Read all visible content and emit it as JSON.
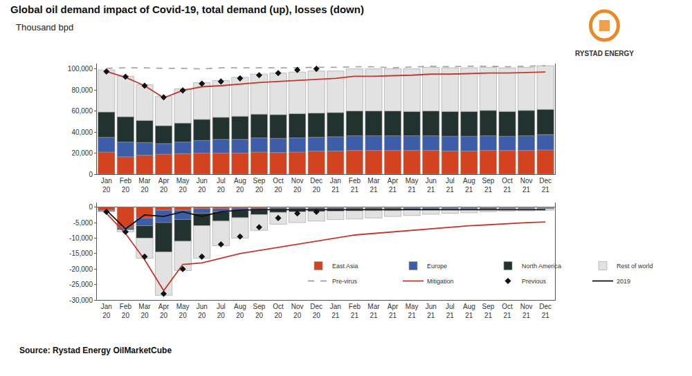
{
  "source": "Source: Rystad Energy OilMarketCube",
  "logo": "RYSTAD ENERGY",
  "chart_data": [
    {
      "type": "bar",
      "title": "Global oil demand impact of Covid-19, total demand (up), losses (down)",
      "subtitle": "Thousand bpd",
      "stacked": true,
      "grid": false,
      "categories": [
        "Jan 20",
        "Feb 20",
        "Mar 20",
        "Apr 20",
        "May 20",
        "Jun 20",
        "Jul 20",
        "Aug 20",
        "Sep 20",
        "Oct 20",
        "Nov 20",
        "Dec 20",
        "Jan 21",
        "Feb 21",
        "Mar 21",
        "Apr 21",
        "May 21",
        "Jun 21",
        "Jul 21",
        "Aug 21",
        "Sep 21",
        "Oct 21",
        "Nov 21",
        "Dec 21"
      ],
      "ylim": [
        0,
        105000
      ],
      "yticks": [
        0,
        {
          "value": 20000,
          "label": "20,000"
        },
        {
          "value": 40000,
          "label": "40,000"
        },
        {
          "value": 60000,
          "label": "60,000"
        },
        {
          "value": 80000,
          "label": "80,000"
        },
        {
          "value": 100000,
          "label": "100,000"
        }
      ],
      "series": [
        {
          "name": "East Asia",
          "type": "bar",
          "color": "#d4431f",
          "values": [
            21000,
            16500,
            18000,
            19000,
            19500,
            20000,
            20000,
            20000,
            21000,
            20500,
            21000,
            22000,
            22000,
            22500,
            22500,
            22500,
            22500,
            22500,
            22000,
            22000,
            22500,
            22500,
            22500,
            23000
          ]
        },
        {
          "name": "Europe",
          "type": "bar",
          "color": "#3d5da8",
          "values": [
            14000,
            14000,
            12000,
            10000,
            11000,
            12000,
            13000,
            13000,
            13500,
            13500,
            13500,
            13000,
            13500,
            14000,
            14000,
            14000,
            14000,
            14000,
            14000,
            14000,
            14000,
            13500,
            14000,
            14500
          ]
        },
        {
          "name": "North America",
          "type": "bar",
          "color": "#22332f",
          "values": [
            24000,
            24000,
            21000,
            17000,
            18000,
            20000,
            21000,
            22000,
            22500,
            22500,
            23000,
            23000,
            23000,
            23500,
            23500,
            23500,
            23000,
            23500,
            23500,
            23500,
            24000,
            23500,
            24000,
            24000
          ]
        },
        {
          "name": "Rest of world",
          "type": "bar",
          "color": "#e2e2e2",
          "values": [
            40000,
            38500,
            34000,
            28000,
            32500,
            35000,
            35000,
            37000,
            38000,
            39500,
            39500,
            40000,
            39500,
            40000,
            40000,
            40000,
            40500,
            41500,
            41500,
            41500,
            41000,
            41500,
            41000,
            41500
          ]
        },
        {
          "name": "Pre-virus",
          "type": "line",
          "line_style": "dashed",
          "color": "#a6a6a6",
          "values": [
            100500,
            101000,
            101000,
            100500,
            100500,
            100000,
            101000,
            101000,
            101000,
            101000,
            101000,
            101500,
            101500,
            102000,
            102000,
            101000,
            101500,
            102500,
            102000,
            102500,
            102500,
            102000,
            102500,
            103000
          ]
        },
        {
          "name": "Mitigation",
          "type": "line",
          "line_style": "solid",
          "color": "#c0392b",
          "values": [
            97500,
            92000,
            84000,
            72500,
            79500,
            83000,
            84000,
            85500,
            87000,
            88000,
            89000,
            90000,
            91000,
            93000,
            93000,
            93500,
            94000,
            95000,
            95000,
            95500,
            96000,
            96000,
            96500,
            97000
          ]
        },
        {
          "name": "Previous",
          "type": "scatter",
          "marker": "diamond",
          "color": "#111111",
          "values": [
            97500,
            92500,
            84000,
            73000,
            79500,
            86000,
            88000,
            91000,
            94000,
            96000,
            99000,
            100000,
            null,
            null,
            null,
            null,
            null,
            null,
            null,
            null,
            null,
            null,
            null,
            null
          ]
        }
      ]
    },
    {
      "type": "bar",
      "stacked": true,
      "grid": false,
      "legend": "bottom right",
      "categories": [
        "Jan 20",
        "Feb 20",
        "Mar 20",
        "Apr 20",
        "May 20",
        "Jun 20",
        "Jul 20",
        "Aug 20",
        "Sep 20",
        "Oct 20",
        "Nov 20",
        "Dec 20",
        "Jan 21",
        "Feb 21",
        "Mar 21",
        "Apr 21",
        "May 21",
        "Jun 21",
        "Jul 21",
        "Aug 21",
        "Sep 21",
        "Oct 21",
        "Nov 21",
        "Dec 21"
      ],
      "ylim": [
        -30000,
        1500
      ],
      "yticks": [
        {
          "value": -30000,
          "label": "-30,000"
        },
        {
          "value": -25000,
          "label": "-25,000"
        },
        {
          "value": -20000,
          "label": "-20,000"
        },
        {
          "value": -15000,
          "label": "-15,000"
        },
        {
          "value": -10000,
          "label": "-10,000"
        },
        {
          "value": -5000,
          "label": "-5,000"
        },
        0
      ],
      "series": [
        {
          "name": "East Asia",
          "type": "bar",
          "color": "#d4431f",
          "values": [
            -1000,
            -6500,
            -3500,
            -1000,
            -1000,
            -500,
            -500,
            -300,
            -300,
            -200,
            -200,
            -200,
            -200,
            -200,
            -200,
            -200,
            -100,
            -100,
            -100,
            -100,
            -100,
            -100,
            -100,
            -100
          ]
        },
        {
          "name": "Europe",
          "type": "bar",
          "color": "#3d5da8",
          "values": [
            -200,
            -500,
            -2500,
            -4000,
            -3000,
            -1500,
            -1000,
            -800,
            -600,
            -500,
            -500,
            -500,
            -500,
            -400,
            -400,
            -400,
            -300,
            -300,
            -300,
            -300,
            -200,
            -200,
            -200,
            -200
          ]
        },
        {
          "name": "North America",
          "type": "bar",
          "color": "#22332f",
          "values": [
            -100,
            -300,
            -4000,
            -9500,
            -7000,
            -4000,
            -3000,
            -2300,
            -1500,
            -1000,
            -800,
            -700,
            -600,
            -600,
            -500,
            -500,
            -400,
            -400,
            -300,
            -300,
            -300,
            -200,
            -200,
            -200
          ]
        },
        {
          "name": "Rest of world",
          "type": "bar",
          "color": "#e2e2e2",
          "values": [
            -200,
            -700,
            -6500,
            -14000,
            -9500,
            -10500,
            -8000,
            -6600,
            -5100,
            -3800,
            -3500,
            -3100,
            -2700,
            -2600,
            -2400,
            -1900,
            -1900,
            -1500,
            -1300,
            -1100,
            -900,
            -800,
            -700,
            -500
          ]
        },
        {
          "name": "2019",
          "type": "line",
          "line_style": "solid",
          "color": "#111111",
          "values": [
            -1000,
            -7000,
            -2500,
            -3000,
            -1500,
            -3000,
            -1500,
            -1000,
            -800,
            -800,
            -800,
            -800,
            -800,
            -800,
            -800,
            -800,
            -800,
            -800,
            -800,
            -800,
            -800,
            -800,
            -800,
            -800
          ]
        },
        {
          "name": "Mitigation",
          "type": "line",
          "line_style": "solid",
          "color": "#c0392b",
          "values": [
            -2000,
            -8500,
            -17000,
            -27000,
            -18500,
            -18000,
            -16500,
            -15000,
            -14000,
            -13000,
            -12000,
            -11000,
            -10000,
            -9000,
            -8500,
            -8000,
            -7500,
            -7000,
            -6500,
            -6000,
            -5700,
            -5300,
            -5000,
            -4800
          ]
        },
        {
          "name": "Previous",
          "type": "scatter",
          "marker": "diamond",
          "color": "#111111",
          "values": [
            -1500,
            -8000,
            -16000,
            -28000,
            -20000,
            -16000,
            -12000,
            -9500,
            -6500,
            -3500,
            -2000,
            -1500,
            null,
            null,
            null,
            null,
            null,
            null,
            null,
            null,
            null,
            null,
            null,
            null
          ]
        }
      ]
    }
  ]
}
